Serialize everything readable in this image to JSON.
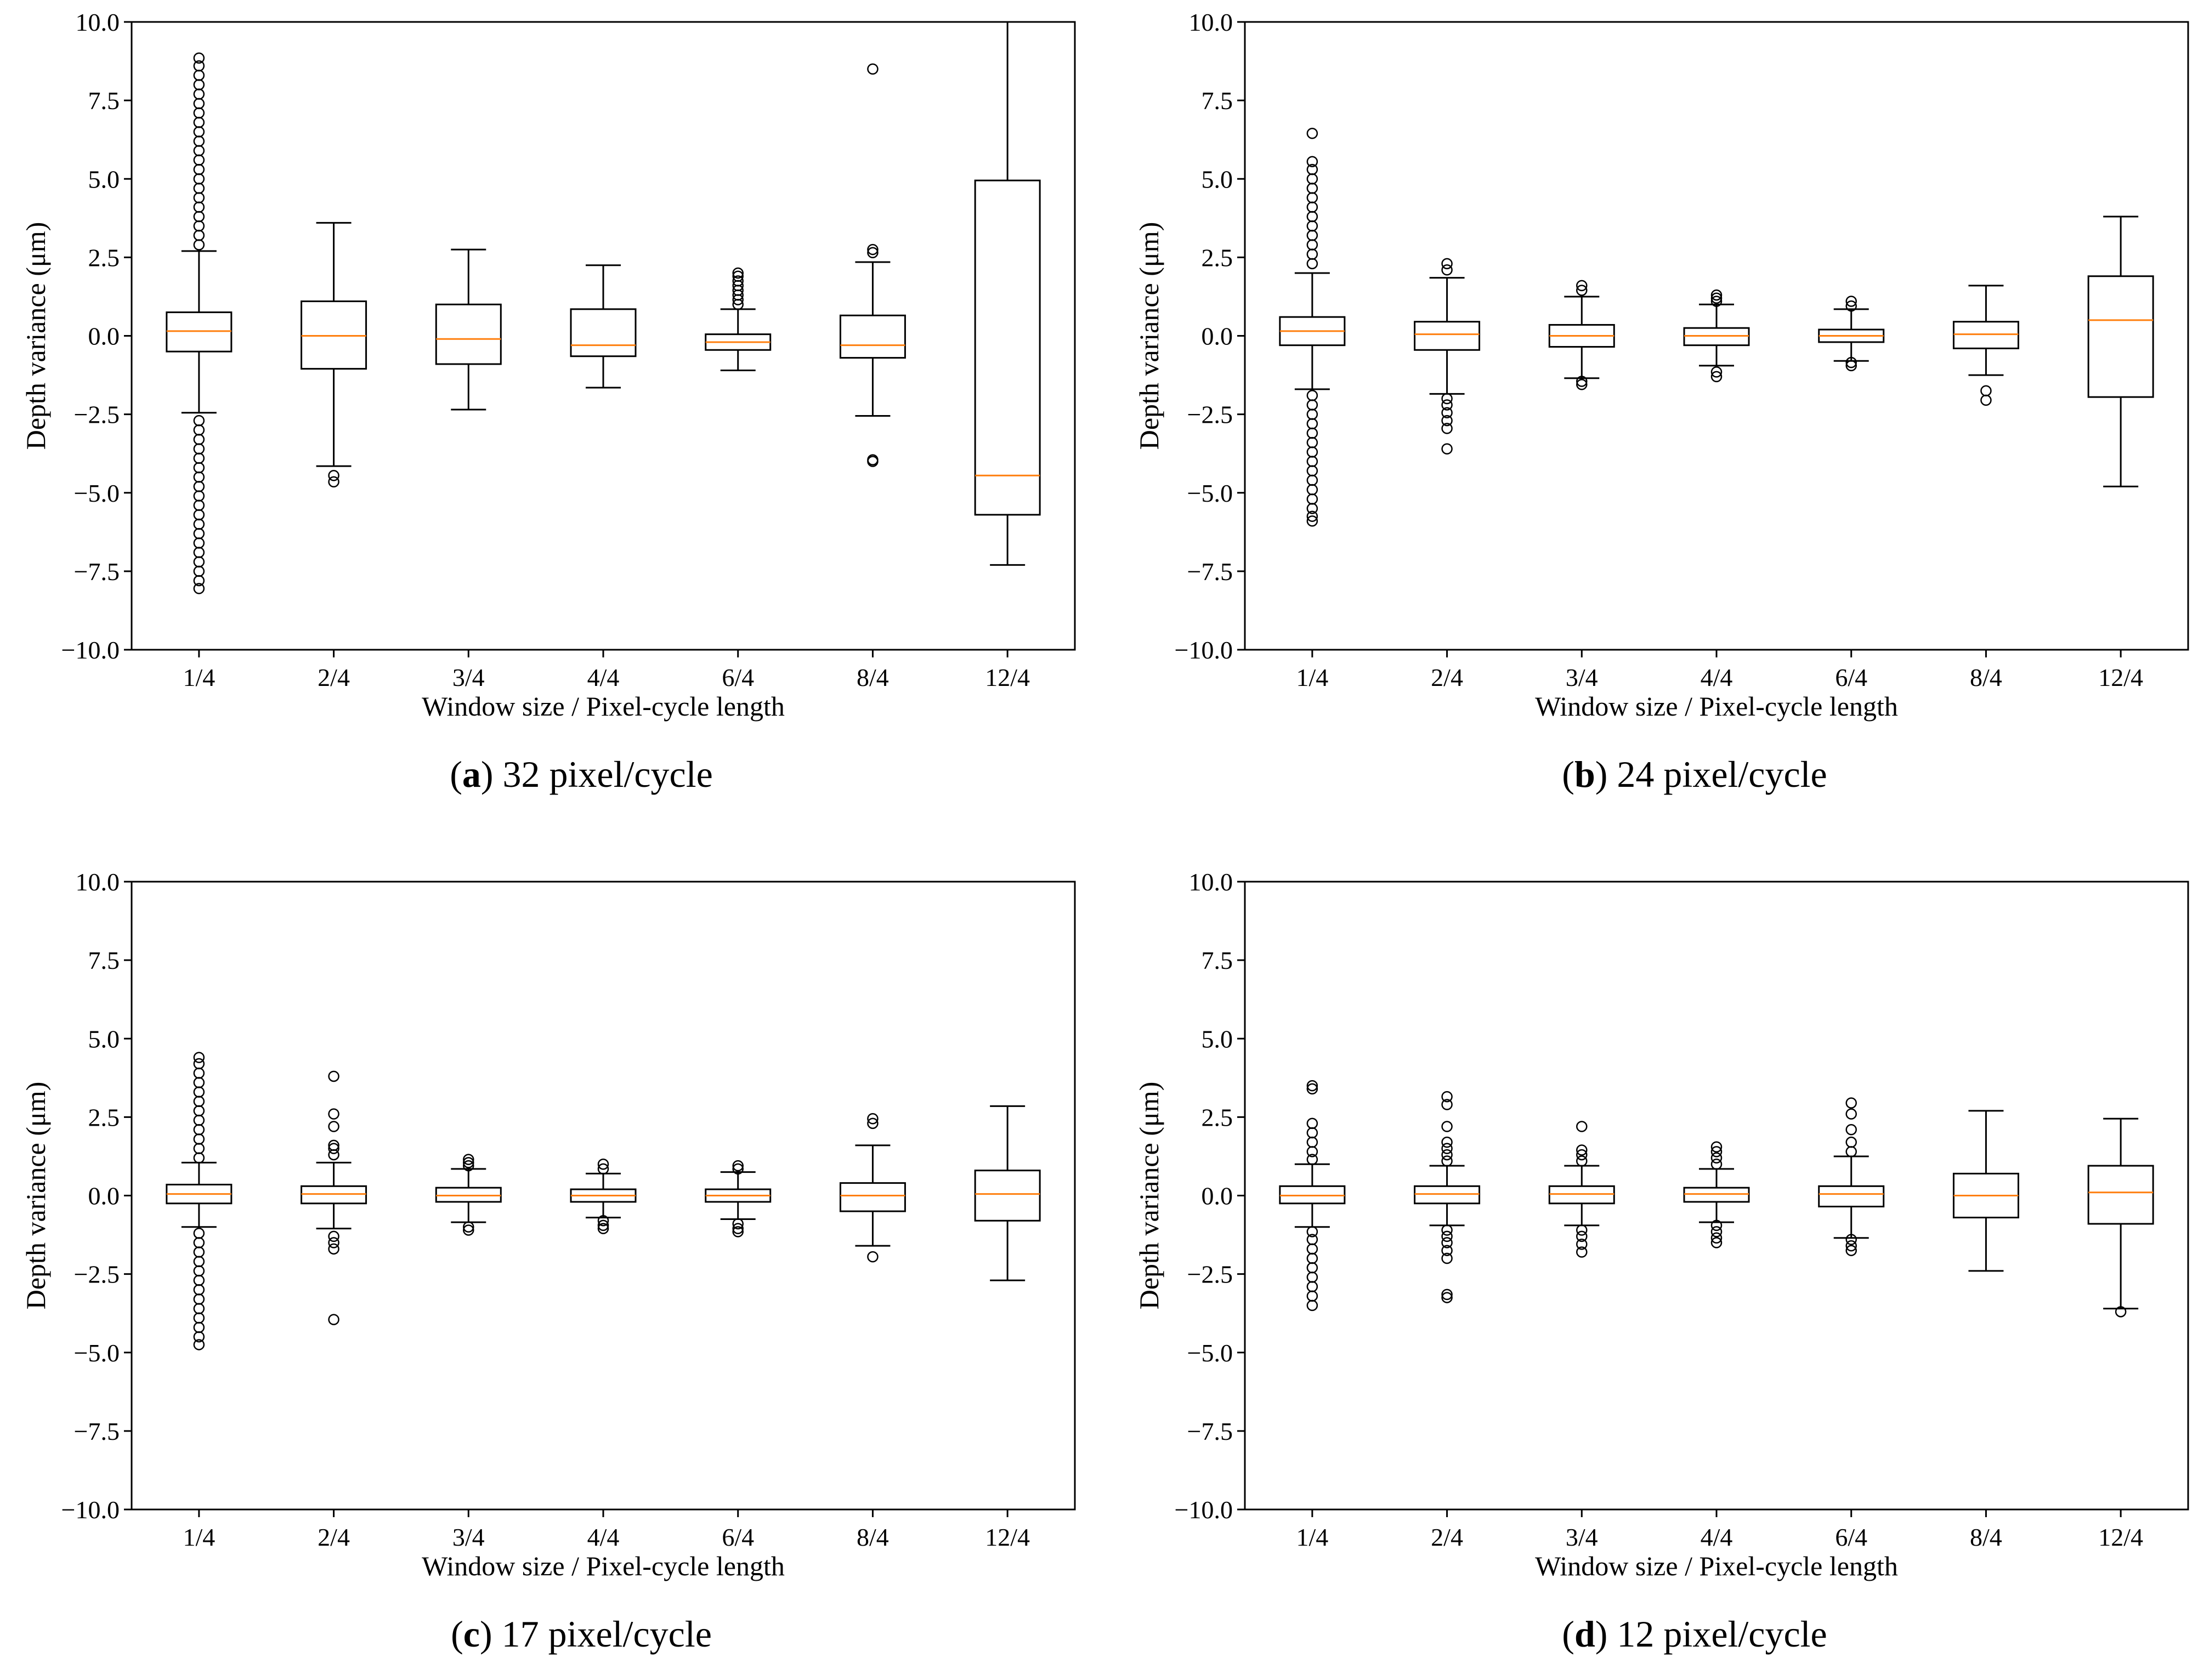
{
  "figure": {
    "panels": [
      {
        "letter": "a",
        "caption_rest": " 32 pixel/cycle"
      },
      {
        "letter": "b",
        "caption_rest": " 24 pixel/cycle"
      },
      {
        "letter": "c",
        "caption_rest": " 17 pixel/cycle"
      },
      {
        "letter": "d",
        "caption_rest": " 12 pixel/cycle"
      }
    ]
  },
  "chart_data": [
    {
      "type": "boxplot",
      "title": "(a) 32 pixel/cycle",
      "xlabel": "Window size / Pixel-cycle length",
      "ylabel": "Depth variance (μm)",
      "ylim": [
        -10,
        10
      ],
      "yticks": [
        10.0,
        7.5,
        5.0,
        2.5,
        0.0,
        -2.5,
        -5.0,
        -7.5,
        -10.0
      ],
      "ytick_labels": [
        "10.0",
        "7.5",
        "5.0",
        "2.5",
        "0.0",
        "−2.5",
        "−5.0",
        "−7.5",
        "−10.0"
      ],
      "categories": [
        "1/4",
        "2/4",
        "3/4",
        "4/4",
        "6/4",
        "8/4",
        "12/4"
      ],
      "boxes": [
        {
          "q1": -0.5,
          "median": 0.15,
          "q3": 0.75,
          "whislo": -2.45,
          "whishi": 2.7,
          "fliers": [
            2.9,
            3.2,
            3.5,
            3.8,
            4.1,
            4.4,
            4.7,
            5.0,
            5.3,
            5.6,
            5.9,
            6.2,
            6.5,
            6.8,
            7.1,
            7.4,
            7.7,
            8.0,
            8.3,
            8.6,
            8.85,
            -2.7,
            -3.0,
            -3.3,
            -3.6,
            -3.9,
            -4.2,
            -4.5,
            -4.8,
            -5.1,
            -5.4,
            -5.7,
            -6.0,
            -6.3,
            -6.6,
            -6.9,
            -7.2,
            -7.5,
            -7.8,
            -8.05
          ]
        },
        {
          "q1": -1.05,
          "median": 0.0,
          "q3": 1.1,
          "whislo": -4.15,
          "whishi": 3.6,
          "fliers": [
            -4.45,
            -4.65
          ]
        },
        {
          "q1": -0.9,
          "median": -0.1,
          "q3": 1.0,
          "whislo": -2.35,
          "whishi": 2.75,
          "fliers": []
        },
        {
          "q1": -0.65,
          "median": -0.3,
          "q3": 0.85,
          "whislo": -1.65,
          "whishi": 2.25,
          "fliers": []
        },
        {
          "q1": -0.45,
          "median": -0.2,
          "q3": 0.05,
          "whislo": -1.1,
          "whishi": 0.85,
          "fliers": [
            1.0,
            1.15,
            1.3,
            1.45,
            1.6,
            1.75,
            1.9,
            2.0
          ]
        },
        {
          "q1": -0.7,
          "median": -0.3,
          "q3": 0.65,
          "whislo": -2.55,
          "whishi": 2.35,
          "fliers": [
            2.65,
            2.75,
            8.5,
            -3.95,
            -4.0
          ]
        },
        {
          "q1": -5.7,
          "median": -4.45,
          "q3": 4.95,
          "whislo": -7.3,
          "whishi": 10.0,
          "fliers": []
        }
      ]
    },
    {
      "type": "boxplot",
      "title": "(b) 24 pixel/cycle",
      "xlabel": "Window size / Pixel-cycle length",
      "ylabel": "Depth variance (μm)",
      "ylim": [
        -10,
        10
      ],
      "yticks": [
        10.0,
        7.5,
        5.0,
        2.5,
        0.0,
        -2.5,
        -5.0,
        -7.5,
        -10.0
      ],
      "ytick_labels": [
        "10.0",
        "7.5",
        "5.0",
        "2.5",
        "0.0",
        "−2.5",
        "−5.0",
        "−7.5",
        "−10.0"
      ],
      "categories": [
        "1/4",
        "2/4",
        "3/4",
        "4/4",
        "6/4",
        "8/4",
        "12/4"
      ],
      "boxes": [
        {
          "q1": -0.3,
          "median": 0.15,
          "q3": 0.6,
          "whislo": -1.7,
          "whishi": 2.0,
          "fliers": [
            2.3,
            2.6,
            2.9,
            3.2,
            3.5,
            3.8,
            4.1,
            4.4,
            4.7,
            5.0,
            5.3,
            5.55,
            6.45,
            -1.9,
            -2.2,
            -2.5,
            -2.8,
            -3.1,
            -3.4,
            -3.7,
            -4.0,
            -4.3,
            -4.6,
            -4.9,
            -5.2,
            -5.5,
            -5.75,
            -5.9
          ]
        },
        {
          "q1": -0.45,
          "median": 0.05,
          "q3": 0.45,
          "whislo": -1.85,
          "whishi": 1.85,
          "fliers": [
            2.1,
            2.3,
            -2.0,
            -2.2,
            -2.45,
            -2.7,
            -2.95,
            -3.6
          ]
        },
        {
          "q1": -0.35,
          "median": 0.0,
          "q3": 0.35,
          "whislo": -1.35,
          "whishi": 1.25,
          "fliers": [
            1.45,
            1.6,
            -1.45,
            -1.55
          ]
        },
        {
          "q1": -0.3,
          "median": 0.0,
          "q3": 0.25,
          "whislo": -0.95,
          "whishi": 1.0,
          "fliers": [
            1.1,
            1.2,
            1.3,
            -1.15,
            -1.3
          ]
        },
        {
          "q1": -0.2,
          "median": 0.0,
          "q3": 0.2,
          "whislo": -0.8,
          "whishi": 0.85,
          "fliers": [
            0.95,
            1.1,
            -0.85,
            -0.95
          ]
        },
        {
          "q1": -0.4,
          "median": 0.05,
          "q3": 0.45,
          "whislo": -1.25,
          "whishi": 1.6,
          "fliers": [
            -1.75,
            -2.05
          ]
        },
        {
          "q1": -1.95,
          "median": 0.5,
          "q3": 1.9,
          "whislo": -4.8,
          "whishi": 3.8,
          "fliers": []
        }
      ]
    },
    {
      "type": "boxplot",
      "title": "(c) 17 pixel/cycle",
      "xlabel": "Window size / Pixel-cycle length",
      "ylabel": "Depth variance (μm)",
      "ylim": [
        -10,
        10
      ],
      "yticks": [
        10.0,
        7.5,
        5.0,
        2.5,
        0.0,
        -2.5,
        -5.0,
        -7.5,
        -10.0
      ],
      "ytick_labels": [
        "10.0",
        "7.5",
        "5.0",
        "2.5",
        "0.0",
        "−2.5",
        "−5.0",
        "−7.5",
        "−10.0"
      ],
      "categories": [
        "1/4",
        "2/4",
        "3/4",
        "4/4",
        "6/4",
        "8/4",
        "12/4"
      ],
      "boxes": [
        {
          "q1": -0.25,
          "median": 0.05,
          "q3": 0.35,
          "whislo": -1.0,
          "whishi": 1.05,
          "fliers": [
            1.2,
            1.5,
            1.8,
            2.1,
            2.4,
            2.7,
            3.0,
            3.3,
            3.6,
            3.9,
            4.2,
            4.4,
            -1.2,
            -1.5,
            -1.8,
            -2.1,
            -2.4,
            -2.7,
            -3.0,
            -3.3,
            -3.6,
            -3.9,
            -4.2,
            -4.5,
            -4.75
          ]
        },
        {
          "q1": -0.25,
          "median": 0.05,
          "q3": 0.3,
          "whislo": -1.05,
          "whishi": 1.05,
          "fliers": [
            1.3,
            1.5,
            1.6,
            2.2,
            2.6,
            3.8,
            -1.3,
            -1.5,
            -1.7,
            -3.95
          ]
        },
        {
          "q1": -0.2,
          "median": 0.0,
          "q3": 0.25,
          "whislo": -0.85,
          "whishi": 0.85,
          "fliers": [
            0.95,
            1.05,
            1.15,
            -1.0,
            -1.1
          ]
        },
        {
          "q1": -0.2,
          "median": 0.0,
          "q3": 0.2,
          "whislo": -0.7,
          "whishi": 0.7,
          "fliers": [
            0.85,
            1.0,
            -0.8,
            -0.95,
            -1.05
          ]
        },
        {
          "q1": -0.2,
          "median": 0.0,
          "q3": 0.2,
          "whislo": -0.75,
          "whishi": 0.75,
          "fliers": [
            0.85,
            0.95,
            -0.9,
            -1.05,
            -1.15
          ]
        },
        {
          "q1": -0.5,
          "median": 0.0,
          "q3": 0.4,
          "whislo": -1.6,
          "whishi": 1.6,
          "fliers": [
            2.3,
            2.45,
            -1.95
          ]
        },
        {
          "q1": -0.8,
          "median": 0.05,
          "q3": 0.8,
          "whislo": -2.7,
          "whishi": 2.85,
          "fliers": []
        }
      ]
    },
    {
      "type": "boxplot",
      "title": "(d) 12 pixel/cycle",
      "xlabel": "Window size / Pixel-cycle length",
      "ylabel": "Depth variance (μm)",
      "ylim": [
        -10,
        10
      ],
      "yticks": [
        10.0,
        7.5,
        5.0,
        2.5,
        0.0,
        -2.5,
        -5.0,
        -7.5,
        -10.0
      ],
      "ytick_labels": [
        "10.0",
        "7.5",
        "5.0",
        "2.5",
        "0.0",
        "−2.5",
        "−5.0",
        "−7.5",
        "−10.0"
      ],
      "categories": [
        "1/4",
        "2/4",
        "3/4",
        "4/4",
        "6/4",
        "8/4",
        "12/4"
      ],
      "boxes": [
        {
          "q1": -0.25,
          "median": 0.0,
          "q3": 0.3,
          "whislo": -1.0,
          "whishi": 1.0,
          "fliers": [
            1.15,
            1.4,
            1.7,
            2.0,
            2.3,
            3.4,
            3.5,
            -1.15,
            -1.4,
            -1.7,
            -2.0,
            -2.3,
            -2.6,
            -2.9,
            -3.2,
            -3.5
          ]
        },
        {
          "q1": -0.25,
          "median": 0.05,
          "q3": 0.3,
          "whislo": -0.95,
          "whishi": 0.95,
          "fliers": [
            1.1,
            1.3,
            1.5,
            1.7,
            2.2,
            2.9,
            3.15,
            -1.1,
            -1.3,
            -1.5,
            -1.75,
            -2.0,
            -3.15,
            -3.25
          ]
        },
        {
          "q1": -0.25,
          "median": 0.05,
          "q3": 0.3,
          "whislo": -0.95,
          "whishi": 0.95,
          "fliers": [
            1.1,
            1.3,
            1.45,
            2.2,
            -1.1,
            -1.3,
            -1.55,
            -1.8
          ]
        },
        {
          "q1": -0.2,
          "median": 0.05,
          "q3": 0.25,
          "whislo": -0.85,
          "whishi": 0.85,
          "fliers": [
            1.0,
            1.2,
            1.4,
            1.55,
            -0.95,
            -1.15,
            -1.35,
            -1.5
          ]
        },
        {
          "q1": -0.35,
          "median": 0.05,
          "q3": 0.3,
          "whislo": -1.35,
          "whishi": 1.25,
          "fliers": [
            1.4,
            1.7,
            2.1,
            2.6,
            2.95,
            -1.4,
            -1.6,
            -1.75
          ]
        },
        {
          "q1": -0.7,
          "median": 0.0,
          "q3": 0.7,
          "whislo": -2.4,
          "whishi": 2.7,
          "fliers": []
        },
        {
          "q1": -0.9,
          "median": 0.1,
          "q3": 0.95,
          "whislo": -3.6,
          "whishi": 2.45,
          "fliers": [
            -3.7
          ]
        }
      ]
    }
  ]
}
